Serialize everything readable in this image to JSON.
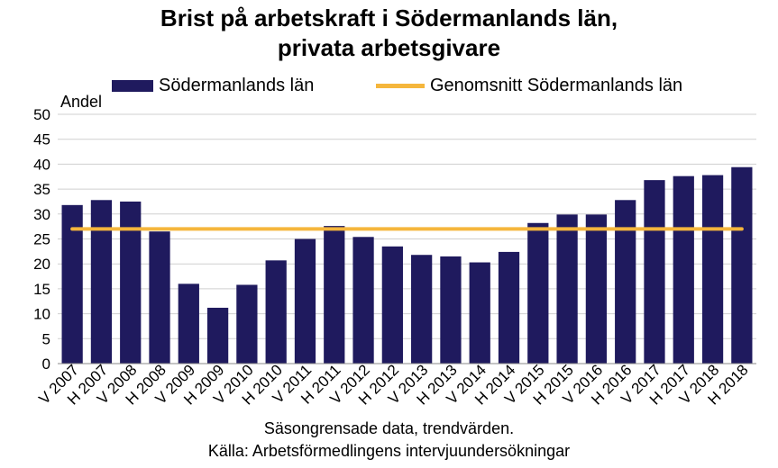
{
  "chart_data": {
    "type": "bar",
    "title_line1": "Brist på arbetskraft i Södermanlands län,",
    "title_line2": "privata arbetsgivare",
    "ylabel": "Andel",
    "xlabel": "",
    "ylim": [
      0,
      50
    ],
    "yticks": [
      "0",
      "5",
      "10",
      "15",
      "20",
      "25",
      "30",
      "35",
      "40",
      "45",
      "50"
    ],
    "grid": true,
    "legend_position": "top",
    "categories": [
      "V 2007",
      "H 2007",
      "V 2008",
      "H 2008",
      "V 2009",
      "H 2009",
      "V 2010",
      "H 2010",
      "V 2011",
      "H 2011",
      "V 2012",
      "H 2012",
      "V 2013",
      "H 2013",
      "V 2014",
      "H 2014",
      "V 2015",
      "H 2015",
      "V 2016",
      "H 2016",
      "V 2017",
      "H 2017",
      "V 2018",
      "H 2018"
    ],
    "series": [
      {
        "name": "Södermanlands län",
        "type": "bar",
        "color": "#1f1a5e",
        "values": [
          31.8,
          32.8,
          32.5,
          26.5,
          16.0,
          11.2,
          15.8,
          20.7,
          25.0,
          27.6,
          25.4,
          23.5,
          21.8,
          21.5,
          20.3,
          22.4,
          28.2,
          29.9,
          29.9,
          32.8,
          36.8,
          37.6,
          37.8,
          39.4
        ]
      },
      {
        "name": "Genomsnitt Södermanlands län",
        "type": "line",
        "color": "#f5b63c",
        "values": [
          27.0,
          27.0,
          27.0,
          27.0,
          27.0,
          27.0,
          27.0,
          27.0,
          27.0,
          27.0,
          27.0,
          27.0,
          27.0,
          27.0,
          27.0,
          27.0,
          27.0,
          27.0,
          27.0,
          27.0,
          27.0,
          27.0,
          27.0,
          27.0
        ]
      }
    ],
    "notes": [
      "Säsongrensade data, trendvärden.",
      "Källa: Arbetsförmedlingens intervjuundersökningar"
    ]
  }
}
